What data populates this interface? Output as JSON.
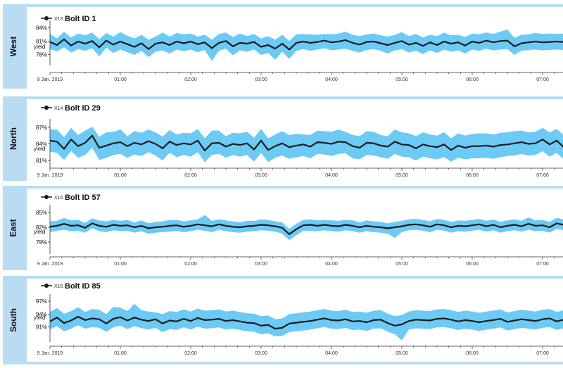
{
  "colors": {
    "band": "#6ccaf5",
    "line": "#1b1b1b",
    "frame": "#b9dcf2",
    "axis": "#333333"
  },
  "chart_data": [
    {
      "type": "area",
      "region": "West",
      "legend": "X13",
      "title": "Bolt ID 1",
      "ylabel": "yield",
      "yticks": [
        "84%",
        "81%",
        "78%"
      ],
      "ytick_values": [
        84,
        81,
        78
      ],
      "ylim": [
        76,
        85
      ],
      "xlim": [
        0.0,
        7.3
      ],
      "xticks": [
        "9 Jan. 2019",
        "01:00",
        "02:00",
        "03:00",
        "04:00",
        "05:00",
        "06:00",
        "07:00"
      ],
      "xtick_values": [
        0,
        1,
        2,
        3,
        4,
        5,
        6,
        7
      ],
      "x": [
        0.0,
        0.1,
        0.2,
        0.3,
        0.4,
        0.5,
        0.6,
        0.7,
        0.8,
        0.9,
        1.0,
        1.1,
        1.2,
        1.3,
        1.4,
        1.5,
        1.6,
        1.7,
        1.8,
        1.9,
        2.0,
        2.1,
        2.2,
        2.3,
        2.4,
        2.5,
        2.6,
        2.7,
        2.8,
        2.9,
        3.0,
        3.1,
        3.2,
        3.3,
        3.4,
        3.5,
        3.6,
        3.7,
        3.8,
        3.9,
        4.0,
        4.1,
        4.2,
        4.3,
        4.4,
        4.5,
        4.6,
        4.7,
        4.8,
        4.9,
        5.0,
        5.1,
        5.2,
        5.3,
        5.4,
        5.5,
        5.6,
        5.7,
        5.8,
        5.9,
        6.0,
        6.1,
        6.2,
        6.3,
        6.4,
        6.5,
        6.6,
        6.7,
        6.8,
        6.9,
        7.0,
        7.1,
        7.2,
        7.3
      ],
      "mean": [
        80.8,
        80.1,
        81.4,
        80.0,
        80.9,
        80.4,
        81.0,
        79.6,
        81.1,
        80.2,
        80.9,
        80.3,
        79.7,
        80.5,
        79.2,
        80.4,
        80.7,
        80.1,
        80.9,
        80.5,
        80.9,
        80.3,
        80.7,
        79.4,
        80.6,
        81.0,
        79.8,
        80.6,
        80.4,
        80.8,
        79.7,
        80.1,
        79.3,
        80.4,
        79.1,
        80.6,
        80.9,
        80.6,
        80.8,
        81.1,
        80.7,
        80.9,
        81.2,
        80.6,
        80.2,
        80.8,
        80.9,
        80.5,
        80.1,
        80.6,
        81.0,
        80.2,
        80.6,
        79.9,
        80.7,
        80.1,
        80.9,
        80.4,
        80.7,
        80.0,
        80.9,
        80.6,
        81.1,
        80.7,
        81.0,
        81.1,
        79.8,
        80.5,
        80.7,
        80.9,
        80.7,
        80.8,
        80.9,
        80.8
      ],
      "upper": [
        82.6,
        81.6,
        83.1,
        81.8,
        82.7,
        82.3,
        82.9,
        81.4,
        82.8,
        82.0,
        83.0,
        82.2,
        81.6,
        82.4,
        81.3,
        82.0,
        82.9,
        82.0,
        82.8,
        82.5,
        82.7,
        82.0,
        82.4,
        81.3,
        82.6,
        82.9,
        81.9,
        82.7,
        82.1,
        82.6,
        81.6,
        82.1,
        81.3,
        82.4,
        81.0,
        82.5,
        82.6,
        82.5,
        82.4,
        82.6,
        82.5,
        82.7,
        83.1,
        82.4,
        82.1,
        82.5,
        82.7,
        82.3,
        82.0,
        82.4,
        83.0,
        82.1,
        82.6,
        81.8,
        82.4,
        82.1,
        82.9,
        82.3,
        82.4,
        81.9,
        82.7,
        82.5,
        82.9,
        82.6,
        83.1,
        83.6,
        81.7,
        82.4,
        82.5,
        82.8,
        82.6,
        82.7,
        82.6,
        82.7
      ],
      "lower": [
        79.2,
        78.7,
        79.6,
        78.4,
        79.2,
        78.8,
        79.4,
        77.6,
        79.5,
        78.3,
        79.1,
        78.5,
        77.9,
        78.8,
        77.4,
        78.6,
        78.9,
        78.2,
        79.1,
        78.7,
        79.1,
        78.5,
        79.0,
        76.5,
        78.8,
        79.3,
        77.8,
        78.9,
        78.6,
        79.1,
        77.9,
        78.3,
        76.8,
        78.6,
        77.0,
        78.8,
        79.2,
        78.8,
        79.1,
        79.4,
        78.9,
        79.1,
        79.3,
        78.8,
        78.4,
        79.0,
        79.2,
        78.8,
        78.2,
        78.9,
        79.2,
        78.4,
        78.8,
        78.1,
        78.9,
        78.3,
        79.1,
        78.6,
        78.9,
        78.2,
        79.1,
        78.8,
        79.3,
        78.9,
        79.1,
        79.2,
        77.9,
        78.8,
        79.0,
        79.1,
        78.9,
        79.0,
        79.1,
        79.0
      ]
    },
    {
      "type": "area",
      "region": "North",
      "legend": "X14",
      "title": "Bolt ID 29",
      "ylabel": "yield",
      "yticks": [
        "87%",
        "84%",
        "81%"
      ],
      "ytick_values": [
        87,
        84,
        81
      ],
      "ylim": [
        80,
        88
      ],
      "xlim": [
        0.0,
        7.3
      ],
      "xticks": [
        "9 Jan. 2019",
        "01:00",
        "02:00",
        "03:00",
        "04:00",
        "05:00",
        "06:00",
        "07:00"
      ],
      "xtick_values": [
        0,
        1,
        2,
        3,
        4,
        5,
        6,
        7
      ],
      "x": [
        0.0,
        0.1,
        0.2,
        0.3,
        0.4,
        0.5,
        0.6,
        0.7,
        0.8,
        0.9,
        1.0,
        1.1,
        1.2,
        1.3,
        1.4,
        1.5,
        1.6,
        1.7,
        1.8,
        1.9,
        2.0,
        2.1,
        2.2,
        2.3,
        2.4,
        2.5,
        2.6,
        2.7,
        2.8,
        2.9,
        3.0,
        3.1,
        3.2,
        3.3,
        3.4,
        3.5,
        3.6,
        3.7,
        3.8,
        3.9,
        4.0,
        4.1,
        4.2,
        4.3,
        4.4,
        4.5,
        4.6,
        4.7,
        4.8,
        4.9,
        5.0,
        5.1,
        5.2,
        5.3,
        5.4,
        5.5,
        5.6,
        5.7,
        5.8,
        5.9,
        6.0,
        6.1,
        6.2,
        6.3,
        6.4,
        6.5,
        6.6,
        6.7,
        6.8,
        6.9,
        7.0,
        7.1,
        7.2,
        7.3
      ],
      "mean": [
        84.6,
        84.4,
        83.1,
        84.8,
        83.6,
        84.2,
        85.5,
        83.3,
        83.7,
        84.1,
        84.3,
        83.6,
        84.2,
        83.9,
        84.5,
        84.0,
        83.2,
        84.4,
        83.8,
        84.1,
        83.9,
        84.6,
        82.8,
        84.1,
        84.2,
        83.5,
        84.0,
        83.8,
        84.1,
        83.0,
        84.6,
        82.9,
        83.6,
        84.1,
        83.4,
        83.7,
        83.9,
        83.5,
        84.3,
        84.2,
        84.0,
        84.4,
        84.3,
        83.6,
        83.3,
        84.2,
        84.1,
        83.7,
        83.5,
        84.4,
        83.9,
        83.8,
        83.2,
        83.9,
        83.6,
        83.4,
        83.9,
        82.9,
        83.7,
        83.3,
        83.6,
        83.6,
        83.7,
        83.5,
        83.8,
        83.9,
        84.1,
        84.3,
        84.0,
        84.1,
        84.8,
        83.9,
        84.6,
        83.4
      ],
      "upper": [
        86.6,
        86.6,
        85.2,
        86.9,
        85.6,
        86.4,
        87.1,
        85.3,
        86.1,
        86.2,
        86.6,
        85.4,
        86.3,
        86.0,
        86.6,
        86.1,
        85.3,
        86.5,
        85.7,
        86.0,
        85.9,
        86.7,
        85.0,
        86.4,
        86.4,
        85.4,
        86.0,
        85.9,
        86.2,
        85.1,
        86.7,
        85.0,
        85.7,
        86.3,
        85.6,
        85.8,
        85.7,
        85.6,
        86.4,
        86.3,
        86.2,
        86.6,
        86.2,
        85.6,
        85.4,
        86.3,
        86.2,
        85.6,
        85.4,
        86.6,
        86.1,
        85.9,
        85.4,
        86.1,
        85.7,
        85.5,
        86.1,
        85.0,
        85.9,
        85.5,
        85.8,
        85.9,
        85.9,
        85.7,
        86.0,
        86.1,
        86.3,
        86.4,
        86.1,
        86.2,
        86.9,
        86.1,
        86.7,
        85.6
      ],
      "lower": [
        82.6,
        82.4,
        81.1,
        82.7,
        81.5,
        82.0,
        83.3,
        81.1,
        81.5,
        82.0,
        82.2,
        81.5,
        82.1,
        81.8,
        82.5,
        81.9,
        81.0,
        82.4,
        81.6,
        82.0,
        81.7,
        82.5,
        80.7,
        82.0,
        82.2,
        81.5,
        82.0,
        81.7,
        82.0,
        80.8,
        82.4,
        80.7,
        81.5,
        81.9,
        81.3,
        81.6,
        81.8,
        81.4,
        82.2,
        82.1,
        81.8,
        82.2,
        82.3,
        81.4,
        81.2,
        82.0,
        81.9,
        81.6,
        81.3,
        82.2,
        81.7,
        81.6,
        81.0,
        81.7,
        81.4,
        81.2,
        81.6,
        80.8,
        81.5,
        81.2,
        81.4,
        81.4,
        81.5,
        81.3,
        81.6,
        81.8,
        81.9,
        82.2,
        81.9,
        82.0,
        82.7,
        81.7,
        82.4,
        81.2
      ]
    },
    {
      "type": "area",
      "region": "East",
      "legend": "X15",
      "title": "Bolt ID 57",
      "ylabel": "yield",
      "yticks": [
        "85%",
        "82%",
        "79%"
      ],
      "ytick_values": [
        85,
        82,
        79
      ],
      "ylim": [
        77,
        86
      ],
      "xlim": [
        0.0,
        7.3
      ],
      "xticks": [
        "9 Jan. 2019",
        "01:00",
        "02:00",
        "03:00",
        "04:00",
        "05:00",
        "06:00",
        "07:00"
      ],
      "xtick_values": [
        0,
        1,
        2,
        3,
        4,
        5,
        6,
        7
      ],
      "x": [
        0.0,
        0.1,
        0.2,
        0.3,
        0.4,
        0.5,
        0.6,
        0.7,
        0.8,
        0.9,
        1.0,
        1.1,
        1.2,
        1.3,
        1.4,
        1.5,
        1.6,
        1.7,
        1.8,
        1.9,
        2.0,
        2.1,
        2.2,
        2.3,
        2.4,
        2.5,
        2.6,
        2.7,
        2.8,
        2.9,
        3.0,
        3.1,
        3.2,
        3.3,
        3.4,
        3.5,
        3.6,
        3.7,
        3.8,
        3.9,
        4.0,
        4.1,
        4.2,
        4.3,
        4.4,
        4.5,
        4.6,
        4.7,
        4.8,
        4.9,
        5.0,
        5.1,
        5.2,
        5.3,
        5.4,
        5.5,
        5.6,
        5.7,
        5.8,
        5.9,
        6.0,
        6.1,
        6.2,
        6.3,
        6.4,
        6.5,
        6.6,
        6.7,
        6.8,
        6.9,
        7.0,
        7.1,
        7.2,
        7.3
      ],
      "mean": [
        82.1,
        82.3,
        82.7,
        82.3,
        82.4,
        81.9,
        82.8,
        82.3,
        82.1,
        82.5,
        82.3,
        82.4,
        82.0,
        82.3,
        81.8,
        82.0,
        82.1,
        82.3,
        82.4,
        82.1,
        82.3,
        82.6,
        82.4,
        82.2,
        82.6,
        82.3,
        82.1,
        82.0,
        82.2,
        82.3,
        82.5,
        82.4,
        82.2,
        81.9,
        80.6,
        81.6,
        82.4,
        82.5,
        82.3,
        82.5,
        82.3,
        82.2,
        82.5,
        82.3,
        82.0,
        82.3,
        82.1,
        82.0,
        81.8,
        82.0,
        82.2,
        82.5,
        82.6,
        82.4,
        82.1,
        82.6,
        82.4,
        82.0,
        82.3,
        82.2,
        82.4,
        82.6,
        82.2,
        82.5,
        82.0,
        82.3,
        82.5,
        82.2,
        82.7,
        82.3,
        82.4,
        82.0,
        82.8,
        82.5
      ],
      "upper": [
        83.2,
        83.3,
        83.9,
        83.4,
        83.5,
        82.9,
        83.8,
        83.4,
        83.2,
        83.5,
        83.3,
        83.5,
        83.0,
        83.4,
        82.8,
        83.1,
        83.2,
        83.5,
        83.5,
        83.2,
        83.4,
        83.6,
        84.5,
        83.3,
        83.6,
        83.4,
        83.2,
        83.0,
        83.3,
        83.3,
        83.6,
        83.5,
        83.2,
        83.0,
        81.7,
        82.7,
        83.5,
        83.6,
        83.4,
        83.5,
        83.4,
        83.3,
        83.5,
        83.4,
        83.0,
        83.4,
        83.2,
        83.1,
        82.8,
        83.1,
        83.3,
        83.6,
        83.7,
        83.5,
        83.2,
        83.7,
        83.5,
        83.1,
        83.4,
        83.3,
        83.5,
        83.7,
        83.3,
        83.6,
        83.1,
        83.4,
        83.6,
        83.3,
        84.0,
        83.4,
        83.5,
        83.1,
        83.9,
        83.6
      ],
      "lower": [
        81.0,
        81.3,
        81.5,
        81.2,
        81.3,
        80.9,
        81.8,
        81.2,
        81.0,
        81.4,
        81.2,
        81.3,
        80.9,
        81.2,
        80.7,
        80.9,
        81.0,
        81.1,
        81.2,
        81.0,
        81.2,
        81.5,
        81.3,
        81.0,
        81.5,
        81.2,
        81.0,
        80.9,
        81.1,
        81.2,
        81.4,
        81.3,
        81.1,
        80.7,
        79.4,
        80.4,
        81.3,
        81.3,
        81.2,
        81.4,
        81.2,
        81.1,
        81.4,
        81.2,
        80.9,
        81.2,
        81.0,
        80.9,
        80.7,
        79.8,
        81.0,
        81.4,
        81.5,
        81.3,
        81.0,
        81.5,
        81.3,
        80.9,
        81.2,
        81.1,
        81.3,
        81.5,
        81.1,
        81.4,
        80.9,
        81.2,
        81.4,
        81.1,
        81.5,
        81.2,
        81.3,
        80.9,
        81.7,
        81.4
      ]
    },
    {
      "type": "area",
      "region": "South",
      "legend": "X16",
      "title": "Bolt ID 85",
      "ylabel": "yield",
      "yticks": [
        "97%",
        "94%",
        "91%"
      ],
      "ytick_values": [
        97,
        94,
        91
      ],
      "ylim": [
        88,
        98
      ],
      "xlim": [
        0.0,
        7.3
      ],
      "xticks": [
        "9 Jan. 2019",
        "01:00",
        "02:00",
        "03:00",
        "04:00",
        "05:00",
        "06:00",
        "07:00"
      ],
      "xtick_values": [
        0,
        1,
        2,
        3,
        4,
        5,
        6,
        7
      ],
      "x": [
        0.0,
        0.1,
        0.2,
        0.3,
        0.4,
        0.5,
        0.6,
        0.7,
        0.8,
        0.9,
        1.0,
        1.1,
        1.2,
        1.3,
        1.4,
        1.5,
        1.6,
        1.7,
        1.8,
        1.9,
        2.0,
        2.1,
        2.2,
        2.3,
        2.4,
        2.5,
        2.6,
        2.7,
        2.8,
        2.9,
        3.0,
        3.1,
        3.2,
        3.3,
        3.4,
        3.5,
        3.6,
        3.7,
        3.8,
        3.9,
        4.0,
        4.1,
        4.2,
        4.3,
        4.4,
        4.5,
        4.6,
        4.7,
        4.8,
        4.9,
        5.0,
        5.1,
        5.2,
        5.3,
        5.4,
        5.5,
        5.6,
        5.7,
        5.8,
        5.9,
        6.0,
        6.1,
        6.2,
        6.3,
        6.4,
        6.5,
        6.6,
        6.7,
        6.8,
        6.9,
        7.0,
        7.1,
        7.2,
        7.3
      ],
      "mean": [
        92.3,
        93.2,
        91.9,
        92.5,
        93.4,
        92.6,
        93.0,
        92.8,
        91.8,
        92.9,
        93.3,
        92.5,
        93.2,
        92.7,
        92.4,
        92.8,
        91.8,
        92.5,
        92.3,
        92.9,
        92.4,
        93.1,
        92.6,
        92.7,
        92.9,
        92.4,
        92.6,
        92.3,
        92.0,
        91.9,
        91.3,
        91.5,
        90.6,
        90.8,
        91.8,
        92.0,
        92.2,
        92.4,
        92.7,
        93.0,
        92.6,
        92.5,
        92.8,
        92.3,
        92.4,
        92.1,
        92.6,
        92.7,
        91.9,
        91.3,
        91.6,
        92.4,
        92.7,
        92.6,
        92.5,
        92.9,
        93.0,
        92.7,
        92.3,
        92.6,
        92.4,
        92.1,
        92.4,
        92.6,
        92.9,
        92.2,
        92.5,
        92.8,
        92.6,
        92.4,
        92.8,
        93.0,
        92.3,
        92.7
      ],
      "upper": [
        94.5,
        95.4,
        94.1,
        94.7,
        95.6,
        94.5,
        95.2,
        95.0,
        94.0,
        95.7,
        95.5,
        94.7,
        96.4,
        94.9,
        94.6,
        94.4,
        94.0,
        94.7,
        94.5,
        95.1,
        94.6,
        95.3,
        94.8,
        94.9,
        95.1,
        94.6,
        94.8,
        94.5,
        94.2,
        94.1,
        93.5,
        93.7,
        92.8,
        93.0,
        94.0,
        94.2,
        94.4,
        94.6,
        94.9,
        95.2,
        94.8,
        94.7,
        95.0,
        94.5,
        94.6,
        94.3,
        94.8,
        94.9,
        94.1,
        93.5,
        93.8,
        94.6,
        94.9,
        94.8,
        94.7,
        95.1,
        95.2,
        94.9,
        94.5,
        94.8,
        94.6,
        94.3,
        94.6,
        94.8,
        95.1,
        94.4,
        94.7,
        95.0,
        94.8,
        94.6,
        95.0,
        95.2,
        94.5,
        94.9
      ],
      "lower": [
        90.4,
        91.2,
        90.0,
        90.6,
        91.4,
        90.6,
        91.0,
        90.8,
        89.9,
        90.9,
        91.3,
        90.5,
        91.2,
        90.7,
        90.4,
        90.8,
        89.8,
        90.5,
        90.3,
        90.9,
        90.4,
        91.1,
        90.6,
        90.7,
        90.9,
        90.4,
        90.6,
        90.3,
        90.0,
        89.9,
        89.3,
        89.5,
        88.8,
        88.9,
        89.8,
        90.0,
        90.2,
        90.4,
        90.7,
        91.0,
        90.6,
        90.5,
        90.8,
        90.3,
        90.4,
        90.1,
        90.6,
        90.7,
        89.9,
        89.3,
        87.9,
        90.4,
        90.7,
        90.6,
        90.5,
        90.9,
        91.0,
        90.7,
        90.3,
        90.6,
        90.4,
        90.1,
        90.4,
        90.6,
        90.9,
        90.2,
        90.5,
        90.8,
        90.6,
        90.4,
        90.8,
        91.0,
        90.3,
        90.7
      ]
    }
  ]
}
